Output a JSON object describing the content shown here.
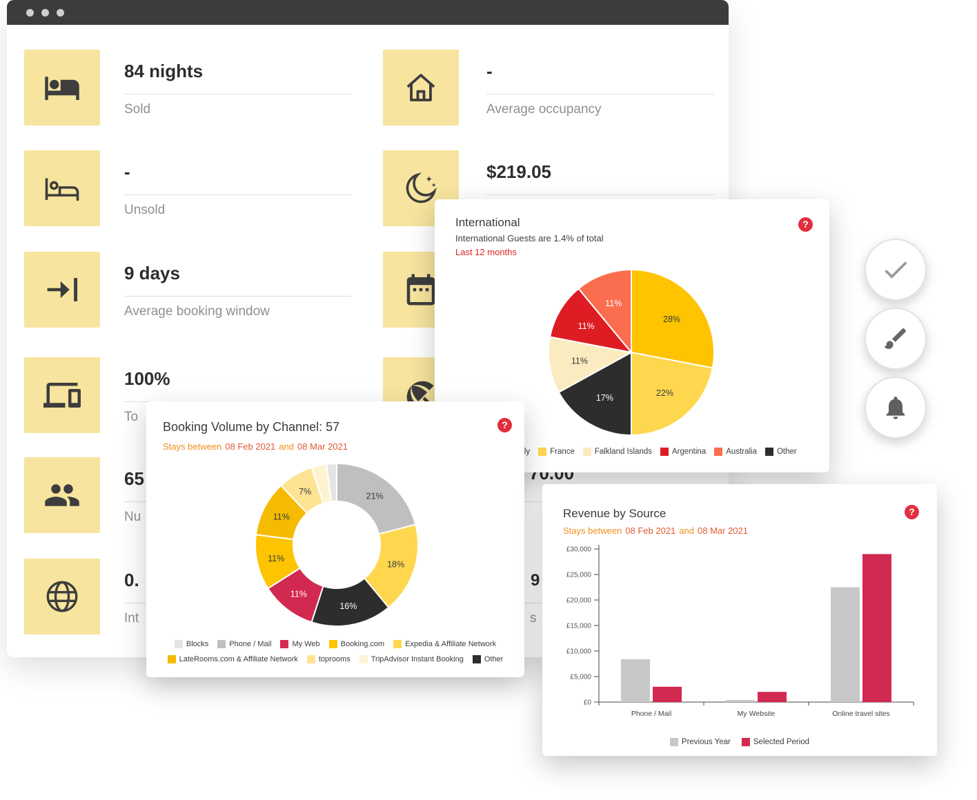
{
  "stats": {
    "left": [
      {
        "icon": "bed-icon",
        "value": "84 nights",
        "label": "Sold"
      },
      {
        "icon": "bed-outline-icon",
        "value": "-",
        "label": "Unsold"
      },
      {
        "icon": "arrow-into-wall-icon",
        "value": "9 days",
        "label": "Average booking window"
      },
      {
        "icon": "devices-icon",
        "value": "100%",
        "label": "To"
      },
      {
        "icon": "people-icon",
        "value": "65",
        "label": "Nu"
      },
      {
        "icon": "globe-icon",
        "value": "0.",
        "label": "Int"
      }
    ],
    "right": [
      {
        "icon": "house-icon",
        "value": "-",
        "label": "Average occupancy"
      },
      {
        "icon": "moon-stars-icon",
        "value": "$219.05",
        "label": ""
      },
      {
        "icon": "calendar-icon",
        "value": "",
        "label": ""
      },
      {
        "icon": "beach-umbrella-icon",
        "value": "",
        "label": ""
      },
      {
        "icon": "hidden",
        "value": "70.00",
        "label": ""
      },
      {
        "icon": "hidden",
        "value": "9",
        "label": "s"
      }
    ]
  },
  "cards": {
    "international": {
      "title": "International",
      "subtitle": "International Guests are 1.4% of total",
      "period": "Last 12 months",
      "help": "?"
    },
    "booking": {
      "title": "Booking Volume by Channel: 57",
      "stays_prefix": "Stays between",
      "date_from": "08 Feb 2021",
      "stays_mid": "and",
      "date_to": "08 Mar 2021",
      "help": "?"
    },
    "revenue": {
      "title": "Revenue by Source",
      "stays_prefix": "Stays between",
      "date_from": "08 Feb 2021",
      "stays_mid": "and",
      "date_to": "08 Mar 2021",
      "help": "?"
    }
  },
  "floating_buttons": [
    {
      "icon": "check-icon"
    },
    {
      "icon": "brush-icon"
    },
    {
      "icon": "bell-icon"
    }
  ],
  "colors": {
    "tile_yellow": "#F7E49E",
    "help_red": "#E12F3E",
    "period_red": "#E02222",
    "stays_orange": "#EF8F1C",
    "date_orange": "#E05A33",
    "selected_period_red": "#D22950",
    "previous_year_gray": "#C8C8C8"
  },
  "chart_data": [
    {
      "type": "pie",
      "title": "International",
      "slices": [
        {
          "label": "Italy",
          "value": 28,
          "pct_label": "28%",
          "color": "#FEC400",
          "label_color": "#3A3A3A"
        },
        {
          "label": "France",
          "value": 22,
          "pct_label": "22%",
          "color": "#FED74F",
          "label_color": "#3A3A3A"
        },
        {
          "label": "Other",
          "value": 17,
          "pct_label": "17%",
          "color": "#2D2D2D",
          "label_color": "#FFFFFF"
        },
        {
          "label": "Falkland Islands",
          "value": 11,
          "pct_label": "11%",
          "color": "#FBEBC0",
          "label_color": "#3A3A3A"
        },
        {
          "label": "Argentina",
          "value": 11,
          "pct_label": "11%",
          "color": "#DD1D23",
          "label_color": "#FFFFFF"
        },
        {
          "label": "Australia",
          "value": 11,
          "pct_label": "11%",
          "color": "#FB6D4F",
          "label_color": "#FFFFFF"
        }
      ],
      "legend": [
        {
          "label": "Italy",
          "color": "#FEC400"
        },
        {
          "label": "France",
          "color": "#FED74F"
        },
        {
          "label": "Falkland Islands",
          "color": "#FBEBC0"
        },
        {
          "label": "Argentina",
          "color": "#DD1D23"
        },
        {
          "label": "Australia",
          "color": "#FB6D4F"
        },
        {
          "label": "Other",
          "color": "#2D2D2D"
        }
      ],
      "legend_position": "bottom"
    },
    {
      "type": "donut",
      "title": "Booking Volume by Channel: 57",
      "total": 57,
      "slices": [
        {
          "label": "Phone / Mail",
          "value": 21,
          "pct_label": "21%",
          "color": "#BFBFBF",
          "label_color": "#3A3A3A"
        },
        {
          "label": "Expedia & Affiliate Network",
          "value": 18,
          "pct_label": "18%",
          "color": "#FED74F",
          "label_color": "#3A3A3A"
        },
        {
          "label": "Other",
          "value": 16,
          "pct_label": "16%",
          "color": "#2D2D2D",
          "label_color": "#FFFFFF"
        },
        {
          "label": "My Web",
          "value": 11,
          "pct_label": "11%",
          "color": "#D22950",
          "label_color": "#FFFFFF"
        },
        {
          "label": "Booking.com",
          "value": 11,
          "pct_label": "11%",
          "color": "#FEC400",
          "label_color": "#3A3A3A"
        },
        {
          "label": "LateRooms.com & Affiliate Network",
          "value": 11,
          "pct_label": "11%",
          "color": "#F5BB00",
          "label_color": "#3A3A3A"
        },
        {
          "label": "toprooms",
          "value": 7,
          "pct_label": "7%",
          "color": "#FEE492",
          "label_color": "#3A3A3A"
        },
        {
          "label": "TripAdvisor Instant Booking",
          "value": 3,
          "pct_label": "",
          "color": "#FDF3D1",
          "label_color": "#3A3A3A"
        },
        {
          "label": "Blocks",
          "value": 2,
          "pct_label": "",
          "color": "#E4E4E4",
          "label_color": "#3A3A3A"
        }
      ],
      "legend_rows": [
        [
          {
            "label": "Blocks",
            "color": "#E4E4E4"
          },
          {
            "label": "Phone / Mail",
            "color": "#BFBFBF"
          },
          {
            "label": "My Web",
            "color": "#D22950"
          },
          {
            "label": "Booking.com",
            "color": "#FEC400"
          },
          {
            "label": "Expedia & Affiliate Network",
            "color": "#FED74F"
          }
        ],
        [
          {
            "label": "LateRooms.com & Affiliate Network",
            "color": "#F5BB00"
          },
          {
            "label": "toprooms",
            "color": "#FEE492"
          },
          {
            "label": "TripAdvisor Instant Booking",
            "color": "#FDF3D1"
          },
          {
            "label": "Other",
            "color": "#2D2D2D"
          }
        ]
      ],
      "legend_position": "bottom"
    },
    {
      "type": "bar",
      "title": "Revenue by Source",
      "categories": [
        "Phone / Mail",
        "My Website",
        "Online travel sites"
      ],
      "series": [
        {
          "name": "Previous Year",
          "color": "#C8C8C8",
          "values": [
            8400,
            400,
            22500
          ]
        },
        {
          "name": "Selected Period",
          "color": "#D22950",
          "values": [
            3000,
            2000,
            29000
          ]
        }
      ],
      "ylim": [
        0,
        30000
      ],
      "y_ticks": [
        {
          "value": 0,
          "label": "£0"
        },
        {
          "value": 5000,
          "label": "£5,000"
        },
        {
          "value": 10000,
          "label": "£10,000"
        },
        {
          "value": 15000,
          "label": "£15,000"
        },
        {
          "value": 20000,
          "label": "£20,000"
        },
        {
          "value": 25000,
          "label": "£25,000"
        },
        {
          "value": 30000,
          "label": "£30,000"
        }
      ],
      "legend": [
        {
          "label": "Previous Year",
          "color": "#C8C8C8"
        },
        {
          "label": "Selected Period",
          "color": "#D22950"
        }
      ],
      "legend_position": "bottom",
      "grid": false
    }
  ]
}
